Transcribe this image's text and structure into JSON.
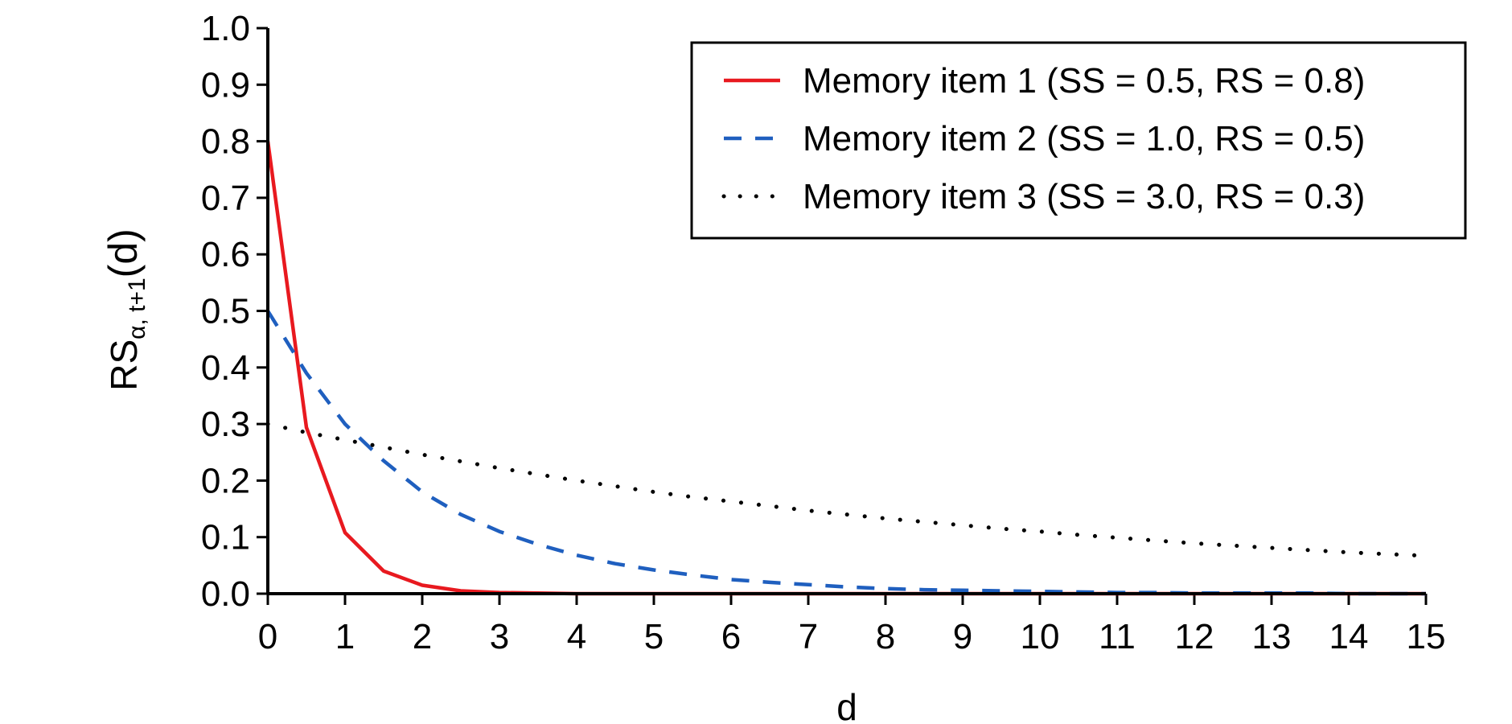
{
  "chart_data": {
    "type": "line",
    "title": "",
    "xlabel": "d",
    "ylabel": {
      "base": "RS",
      "subscript": "α, t+1",
      "suffix": "(d)"
    },
    "xlim": [
      0,
      15
    ],
    "ylim": [
      0,
      1.0
    ],
    "x_ticks": [
      "0",
      "1",
      "2",
      "3",
      "4",
      "5",
      "6",
      "7",
      "8",
      "9",
      "10",
      "11",
      "12",
      "13",
      "14",
      "15"
    ],
    "y_ticks": [
      "0.0",
      "0.1",
      "0.2",
      "0.3",
      "0.4",
      "0.5",
      "0.6",
      "0.7",
      "0.8",
      "0.9",
      "1.0"
    ],
    "grid": false,
    "legend_position": "top-right",
    "x": [
      0,
      0.5,
      1,
      1.5,
      2,
      2.5,
      3,
      3.5,
      4,
      4.5,
      5,
      5.5,
      6,
      6.5,
      7,
      7.5,
      8,
      8.5,
      9,
      9.5,
      10,
      10.5,
      11,
      11.5,
      12,
      12.5,
      13,
      13.5,
      14,
      14.5,
      15
    ],
    "series": [
      {
        "name": "Memory item 1 (SS = 0.5, RS = 0.8)",
        "color": "#e8191f",
        "style": "solid",
        "values": [
          0.8,
          0.294,
          0.108,
          0.04,
          0.015,
          0.005,
          0.002,
          0.001,
          0.0,
          0.0,
          0.0,
          0.0,
          0.0,
          0.0,
          0.0,
          0.0,
          0.0,
          0.0,
          0.0,
          0.0,
          0.0,
          0.0,
          0.0,
          0.0,
          0.0,
          0.0,
          0.0,
          0.0,
          0.0,
          0.0,
          0.0
        ]
      },
      {
        "name": "Memory item 2 (SS = 1.0, RS = 0.5)",
        "color": "#1f5fbf",
        "style": "dashed",
        "values": [
          0.5,
          0.39,
          0.3,
          0.235,
          0.18,
          0.14,
          0.11,
          0.087,
          0.068,
          0.053,
          0.042,
          0.033,
          0.025,
          0.02,
          0.016,
          0.012,
          0.009,
          0.007,
          0.006,
          0.005,
          0.004,
          0.003,
          0.002,
          0.002,
          0.001,
          0.001,
          0.001,
          0.001,
          0.0,
          0.0,
          0.0
        ]
      },
      {
        "name": "Memory item 3 (SS = 3.0, RS = 0.3)",
        "color": "#000000",
        "style": "dotted",
        "values": [
          0.3,
          0.285,
          0.272,
          0.259,
          0.246,
          0.234,
          0.222,
          0.211,
          0.2,
          0.19,
          0.18,
          0.171,
          0.163,
          0.155,
          0.147,
          0.14,
          0.133,
          0.127,
          0.121,
          0.115,
          0.11,
          0.104,
          0.099,
          0.094,
          0.089,
          0.085,
          0.081,
          0.077,
          0.073,
          0.07,
          0.067
        ]
      }
    ]
  }
}
